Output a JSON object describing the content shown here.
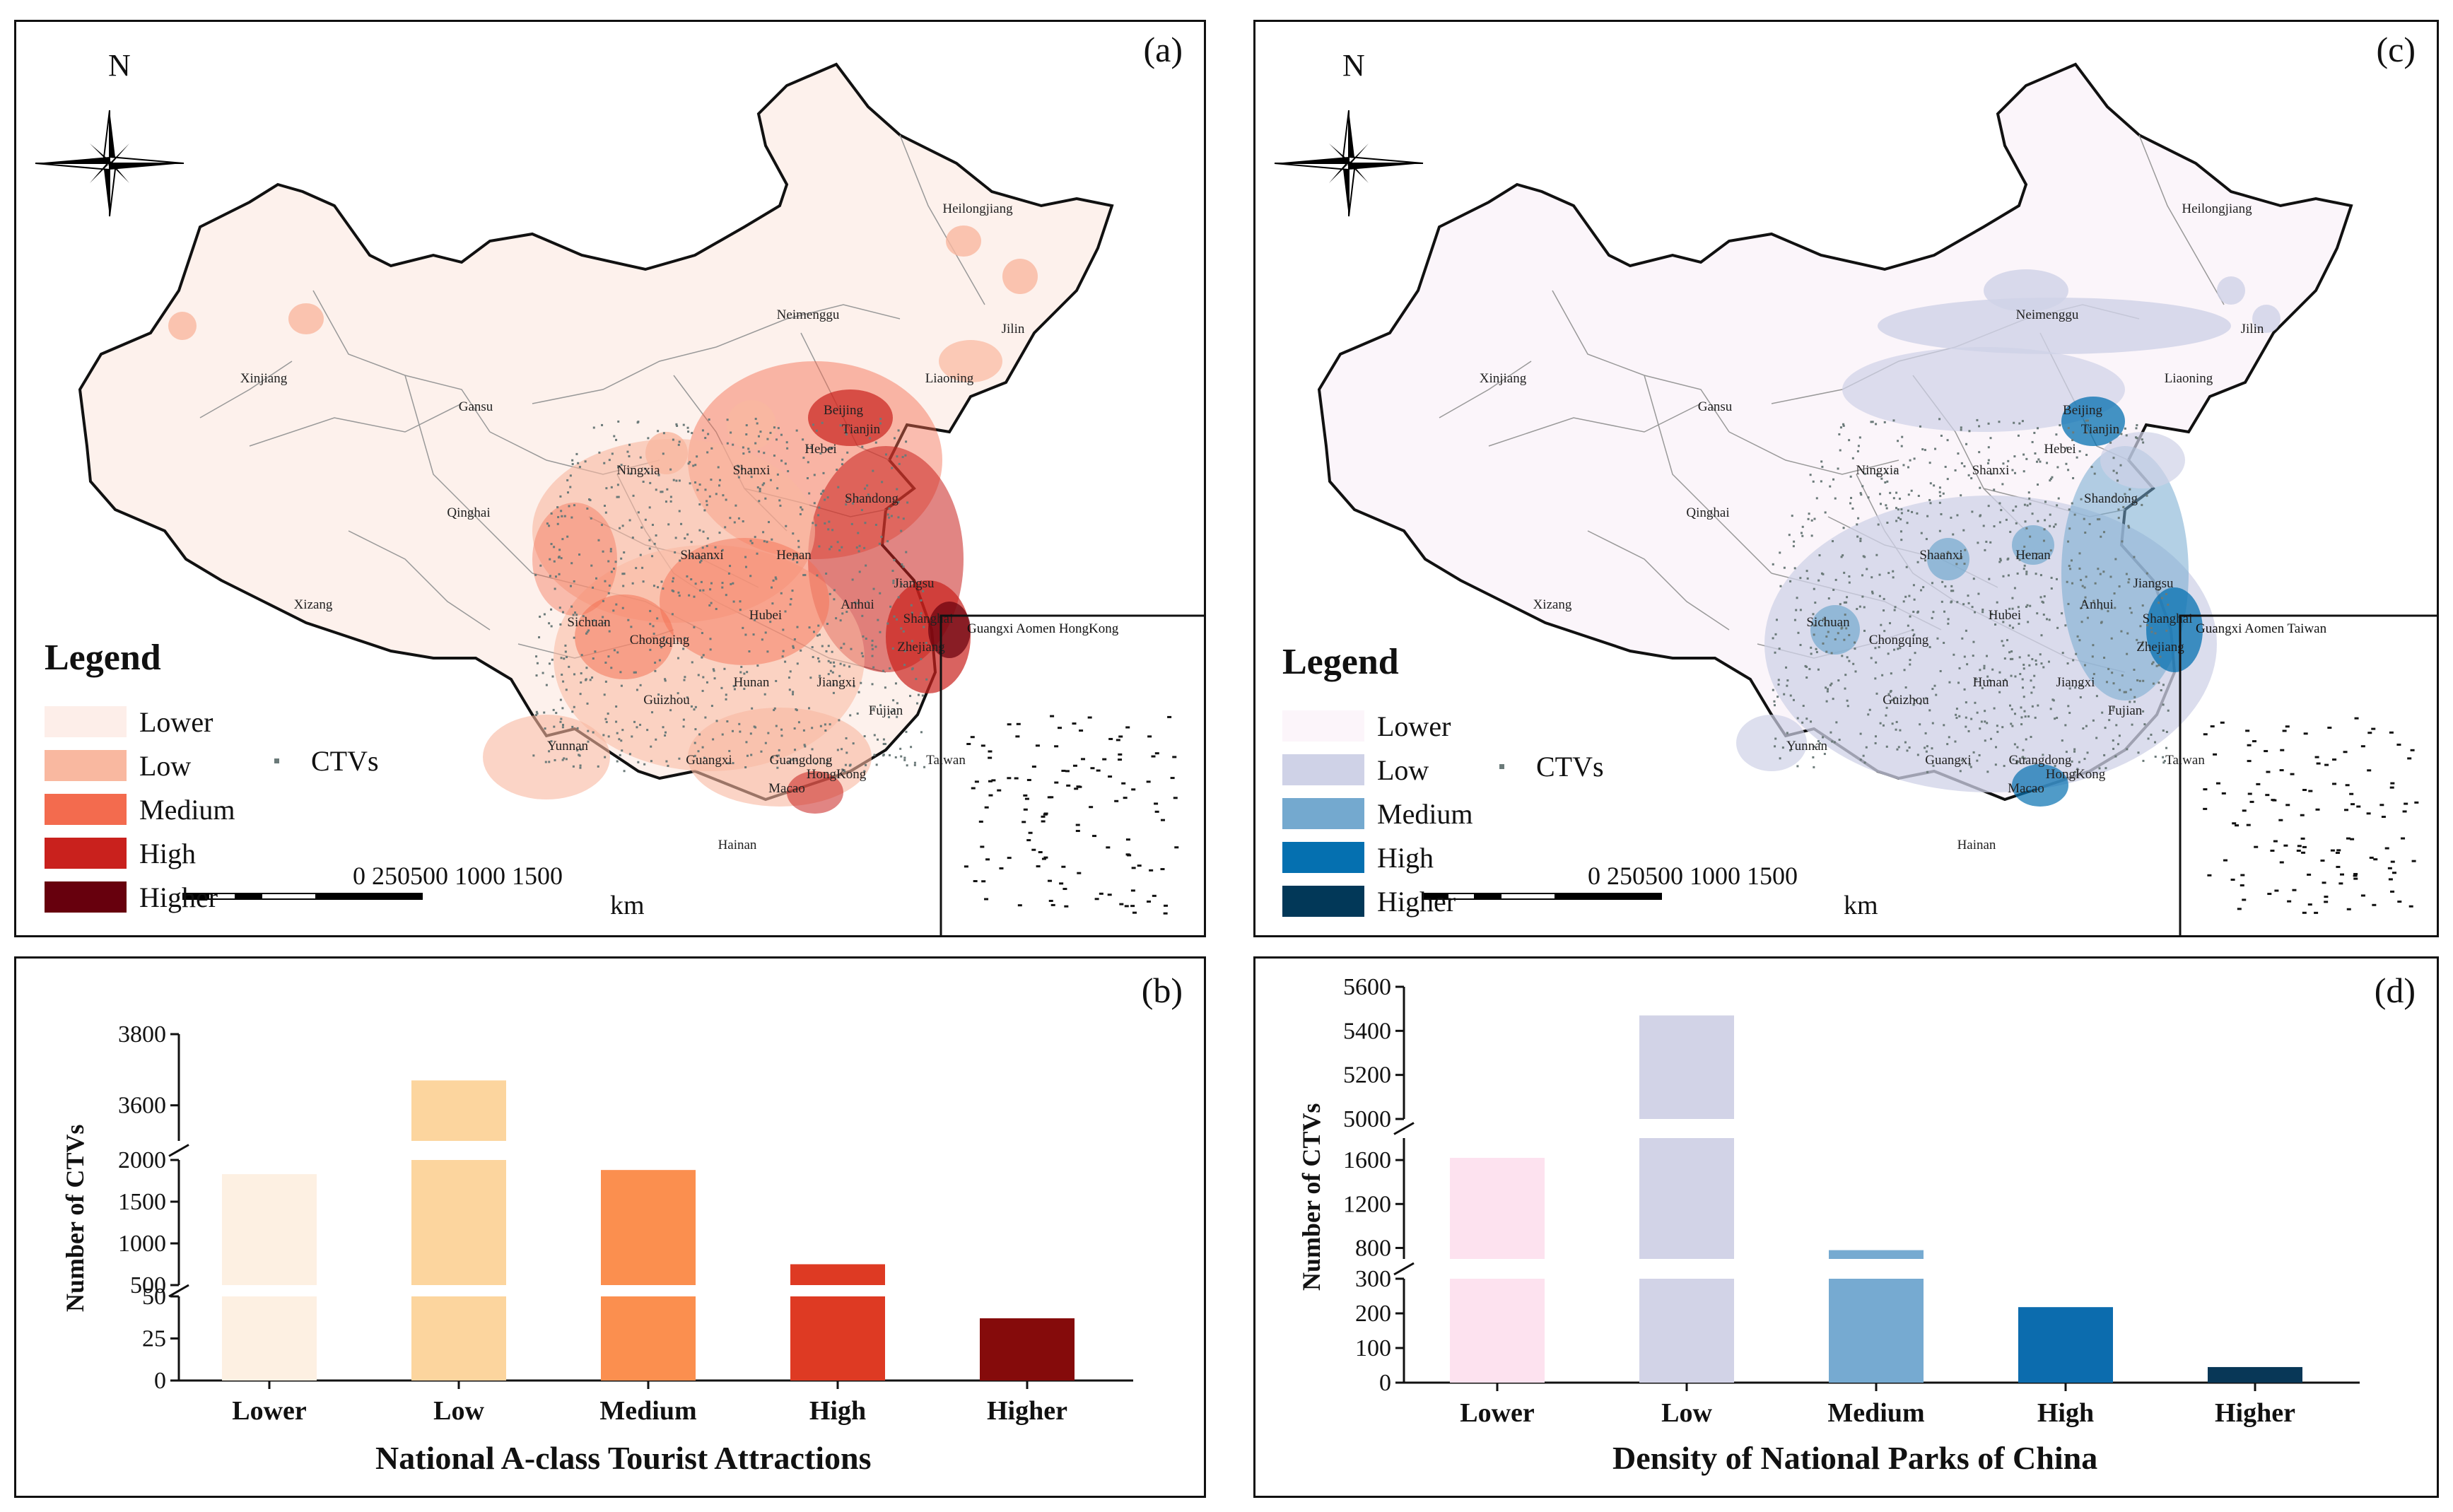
{
  "map_a": {
    "label": "(a)",
    "north": "N",
    "legend_title": "Legend",
    "legend": [
      {
        "label": "Lower",
        "color": "#fdeee9"
      },
      {
        "label": "Low",
        "color": "#f9b8a0"
      },
      {
        "label": "Medium",
        "color": "#f36b4e"
      },
      {
        "label": "High",
        "color": "#c9211d"
      },
      {
        "label": "Higher",
        "color": "#67000d"
      }
    ],
    "ctv_label": "CTVs",
    "scale_labels": "0  250500    1000    1500",
    "scale_unit": "km",
    "base_color": "#fdf1ec",
    "provinces": [
      "Heilongjiang",
      "Jilin",
      "Liaoning",
      "Neimenggu",
      "Xinjiang",
      "Gansu",
      "Beijing",
      "Tianjin",
      "Hebei",
      "Ningxia",
      "Shanxi",
      "Shandong",
      "Qinghai",
      "Shaanxi",
      "Henan",
      "Jiangsu",
      "Xizang",
      "Sichuan",
      "Anhui",
      "Shanghai",
      "Hubei",
      "Chongqing",
      "Zhejiang",
      "Hunan",
      "Jiangxi",
      "Guizhou",
      "Fujian",
      "Yunnan",
      "Guangxi",
      "Guangdong",
      "Taiwan",
      "HongKong",
      "Macao",
      "Hainan"
    ],
    "inset_labels": "Guangxi Aomen HongKong"
  },
  "map_c": {
    "label": "(c)",
    "north": "N",
    "legend_title": "Legend",
    "legend": [
      {
        "label": "Lower",
        "color": "#fcf5fa"
      },
      {
        "label": "Low",
        "color": "#cfd2e7"
      },
      {
        "label": "Medium",
        "color": "#74a9cf"
      },
      {
        "label": "High",
        "color": "#0570b0"
      },
      {
        "label": "Higher",
        "color": "#023858"
      }
    ],
    "ctv_label": "CTVs",
    "scale_labels": "0  250500    1000    1500",
    "scale_unit": "km",
    "base_color": "#fbf5fa",
    "provinces": [
      "Heilongjiang",
      "Jilin",
      "Liaoning",
      "Neimenggu",
      "Xinjiang",
      "Gansu",
      "Beijing",
      "Tianjin",
      "Hebei",
      "Ningxia",
      "Shanxi",
      "Shandong",
      "Qinghai",
      "Shaanxi",
      "Henan",
      "Jiangsu",
      "Xizang",
      "Sichuan",
      "Anhui",
      "Shanghai",
      "Hubei",
      "Chongqing",
      "Zhejiang",
      "Hunan",
      "Jiangxi",
      "Guizhou",
      "Fujian",
      "Yunnan",
      "Guangxi",
      "Guangdong",
      "Taiwan",
      "HongKong",
      "Macao",
      "Hainan"
    ],
    "inset_labels": "Guangxi Aomen Taiwan"
  },
  "chart_data": [
    {
      "type": "bar",
      "label": "(b)",
      "title": "",
      "xlabel": "National A-class Tourist Attractions",
      "ylabel": "Number of CTVs",
      "categories": [
        "Lower",
        "Low",
        "Medium",
        "High",
        "Higher"
      ],
      "values": [
        1830,
        3670,
        1880,
        750,
        37
      ],
      "colors": [
        "#fdf0e2",
        "#fcd59e",
        "#fb8f4f",
        "#de3a23",
        "#850b0b"
      ],
      "axis_breaks": "broken y-axis: 0-50, 500-2000, 3500-3800",
      "y_tick_labels": [
        "0",
        "25",
        "50",
        "500",
        "1000",
        "1500",
        "2000",
        "3600",
        "3800"
      ]
    },
    {
      "type": "bar",
      "label": "(d)",
      "title": "",
      "xlabel": "Density of National Parks of China",
      "ylabel": "Number of CTVs",
      "categories": [
        "Lower",
        "Low",
        "Medium",
        "High",
        "Higher"
      ],
      "values": [
        1620,
        5470,
        780,
        218,
        45
      ],
      "colors": [
        "#fde2ef",
        "#d2d3e7",
        "#76aad1",
        "#0c6cae",
        "#083757"
      ],
      "axis_breaks": "broken y-axis: 0-300, 700-1800, 5000-5600",
      "y_tick_labels": [
        "0",
        "100",
        "200",
        "300",
        "800",
        "1200",
        "1600",
        "5000",
        "5200",
        "5400",
        "5600"
      ]
    }
  ]
}
